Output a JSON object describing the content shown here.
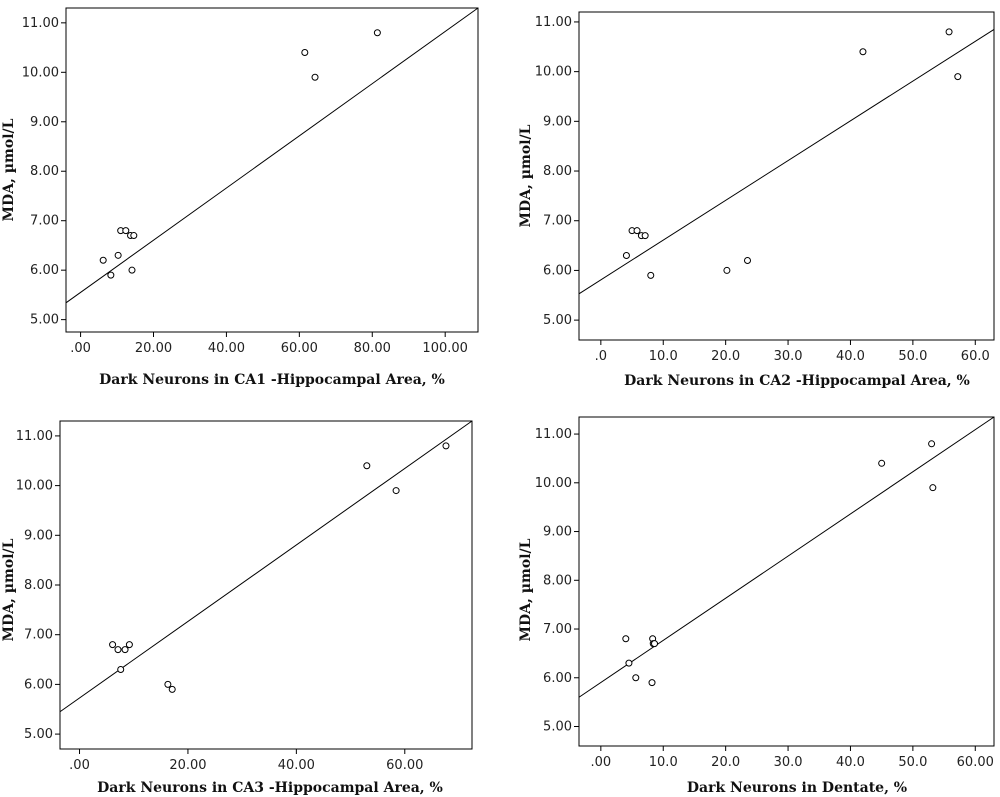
{
  "chart_data": [
    {
      "type": "scatter",
      "title": "",
      "xlabel": "Dark Neurons in CA1 -Hippocampal Area, %",
      "ylabel": "MDA, µmol/L",
      "xlim": [
        -4,
        109
      ],
      "ylim": [
        4.75,
        11.3
      ],
      "xticks": [
        0,
        20,
        40,
        60,
        80,
        100
      ],
      "xtick_labels": [
        ".00",
        "20.00",
        "40.00",
        "60.00",
        "80.00",
        "100.00"
      ],
      "yticks": [
        5,
        6,
        7,
        8,
        9,
        10,
        11
      ],
      "ytick_labels": [
        "5.00",
        "6.00",
        "7.00",
        "8.00",
        "9.00",
        "10.00",
        "11.00"
      ],
      "points": [
        {
          "x": 6.2,
          "y": 6.2
        },
        {
          "x": 8.3,
          "y": 5.9
        },
        {
          "x": 10.3,
          "y": 6.3
        },
        {
          "x": 11.0,
          "y": 6.8
        },
        {
          "x": 12.4,
          "y": 6.8
        },
        {
          "x": 13.7,
          "y": 6.7
        },
        {
          "x": 14.6,
          "y": 6.7
        },
        {
          "x": 14.1,
          "y": 6.0
        },
        {
          "x": 61.5,
          "y": 10.4
        },
        {
          "x": 64.3,
          "y": 9.9
        },
        {
          "x": 81.4,
          "y": 10.8
        }
      ],
      "fit_line": {
        "x1": -4,
        "y1": 5.34,
        "x2": 109,
        "y2": 11.3
      },
      "grid": false
    },
    {
      "type": "scatter",
      "title": "",
      "xlabel": "Dark Neurons in CA2 -Hippocampal Area, %",
      "ylabel": "MDA, µmol/L",
      "xlim": [
        -3.5,
        63
      ],
      "ylim": [
        4.6,
        11.2
      ],
      "xticks": [
        0,
        10,
        20,
        30,
        40,
        50,
        60
      ],
      "xtick_labels": [
        ".0",
        "10.0",
        "20.0",
        "30.0",
        "40.0",
        "50.0",
        "60.0"
      ],
      "yticks": [
        5,
        6,
        7,
        8,
        9,
        10,
        11
      ],
      "ytick_labels": [
        "5.00",
        "6.00",
        "7.00",
        "8.00",
        "9.00",
        "10.00",
        "11.00"
      ],
      "points": [
        {
          "x": 4.1,
          "y": 6.3
        },
        {
          "x": 5.0,
          "y": 6.8
        },
        {
          "x": 5.8,
          "y": 6.8
        },
        {
          "x": 6.5,
          "y": 6.7
        },
        {
          "x": 7.1,
          "y": 6.7
        },
        {
          "x": 8.0,
          "y": 5.9
        },
        {
          "x": 20.2,
          "y": 6.0
        },
        {
          "x": 23.5,
          "y": 6.2
        },
        {
          "x": 42.0,
          "y": 10.4
        },
        {
          "x": 55.8,
          "y": 10.8
        },
        {
          "x": 57.2,
          "y": 9.9
        }
      ],
      "fit_line": {
        "x1": -3.5,
        "y1": 5.53,
        "x2": 63,
        "y2": 10.85
      },
      "grid": false
    },
    {
      "type": "scatter",
      "title": "",
      "xlabel": "Dark Neurons in CA3 -Hippocampal Area, %",
      "ylabel": "MDA, µmol/L",
      "xlim": [
        -3.6,
        72.4
      ],
      "ylim": [
        4.7,
        11.3
      ],
      "xticks": [
        0,
        20,
        40,
        60
      ],
      "xtick_labels": [
        ".00",
        "20.00",
        "40.00",
        "60.00"
      ],
      "yticks": [
        5,
        6,
        7,
        8,
        9,
        10,
        11
      ],
      "ytick_labels": [
        "5.00",
        "6.00",
        "7.00",
        "8.00",
        "9.00",
        "10.00",
        "11.00"
      ],
      "points": [
        {
          "x": 6.1,
          "y": 6.8
        },
        {
          "x": 7.1,
          "y": 6.7
        },
        {
          "x": 7.6,
          "y": 6.3
        },
        {
          "x": 8.4,
          "y": 6.7
        },
        {
          "x": 9.2,
          "y": 6.8
        },
        {
          "x": 16.3,
          "y": 6.0
        },
        {
          "x": 17.1,
          "y": 5.9
        },
        {
          "x": 53.0,
          "y": 10.4
        },
        {
          "x": 58.4,
          "y": 9.9
        },
        {
          "x": 67.6,
          "y": 10.8
        }
      ],
      "fit_line": {
        "x1": -3.6,
        "y1": 5.45,
        "x2": 72.4,
        "y2": 11.3
      },
      "grid": false
    },
    {
      "type": "scatter",
      "title": "",
      "xlabel": "Dark Neurons in Dentate, %",
      "ylabel": "MDA, µmol/L",
      "xlim": [
        -3.5,
        63
      ],
      "ylim": [
        4.6,
        11.35
      ],
      "xticks": [
        0,
        10,
        20,
        30,
        40,
        50,
        60
      ],
      "xtick_labels": [
        ".00",
        "10.0",
        "20.0",
        "30.0",
        "40.0",
        "50.0",
        "60.00"
      ],
      "yticks": [
        5,
        6,
        7,
        8,
        9,
        10,
        11
      ],
      "ytick_labels": [
        "5.00",
        "6.00",
        "7.00",
        "8.00",
        "9.00",
        "10.00",
        "11.00"
      ],
      "points": [
        {
          "x": 4.0,
          "y": 6.8
        },
        {
          "x": 4.5,
          "y": 6.3
        },
        {
          "x": 5.6,
          "y": 6.0
        },
        {
          "x": 8.2,
          "y": 5.9
        },
        {
          "x": 8.3,
          "y": 6.8
        },
        {
          "x": 8.4,
          "y": 6.7
        },
        {
          "x": 8.6,
          "y": 6.7
        },
        {
          "x": 45.0,
          "y": 10.4
        },
        {
          "x": 53.0,
          "y": 10.8
        },
        {
          "x": 53.2,
          "y": 9.9
        }
      ],
      "fit_line": {
        "x1": -3.5,
        "y1": 5.6,
        "x2": 63,
        "y2": 11.35
      },
      "grid": false
    }
  ]
}
